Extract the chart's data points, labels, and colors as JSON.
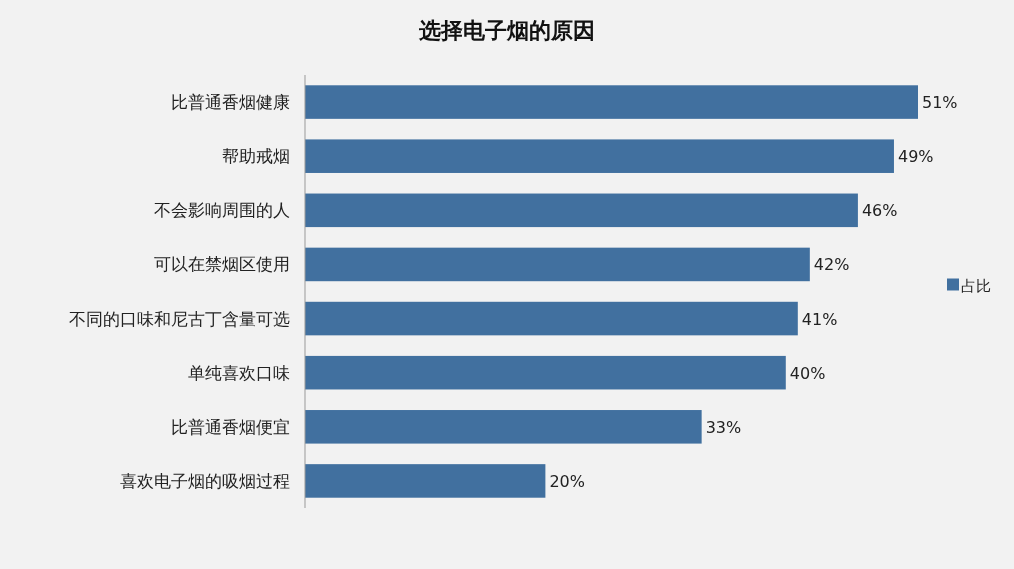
{
  "chart_data": {
    "type": "bar",
    "orientation": "horizontal",
    "title": "选择电子烟的原因",
    "categories": [
      "比普通香烟健康",
      "帮助戒烟",
      "不会影响周围的人",
      "可以在禁烟区使用",
      "不同的口味和尼古丁含量可选",
      "单纯喜欢口味",
      "比普通香烟便宜",
      "喜欢电子烟的吸烟过程"
    ],
    "series": [
      {
        "name": "占比",
        "color": "#41709f",
        "values": [
          51,
          49,
          46,
          42,
          41,
          40,
          33,
          20
        ],
        "value_labels": [
          "51%",
          "49%",
          "46%",
          "42%",
          "41%",
          "40%",
          "33%",
          "20%"
        ]
      }
    ],
    "legend": "right"
  }
}
